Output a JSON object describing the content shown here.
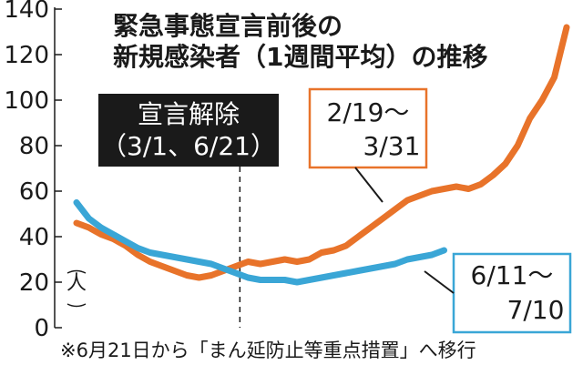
{
  "chart_data": {
    "type": "line",
    "title": [
      "緊急事態宣言前後の",
      "新規感染者（1週間平均）の推移"
    ],
    "ylabel": "人",
    "ylim": [
      0,
      140
    ],
    "yticks": [
      0,
      20,
      40,
      60,
      80,
      100,
      120,
      140
    ],
    "grid": false,
    "marker": {
      "label": [
        "宣言解除",
        "（3/1、6/21）"
      ],
      "at_day": 40
    },
    "series": [
      {
        "name": "2/19〜3/31",
        "color": "#e8732a",
        "label": [
          "2/19〜",
          "3/31"
        ],
        "x": [
          0,
          3,
          6,
          9,
          12,
          15,
          18,
          21,
          24,
          27,
          30,
          33,
          36,
          39,
          42,
          45,
          48,
          51,
          54,
          57,
          60,
          63,
          66,
          69,
          72,
          75,
          78,
          81,
          84,
          87,
          90,
          93,
          96,
          99,
          102,
          105,
          108,
          111,
          114,
          117,
          120
        ],
        "values": [
          46,
          44,
          41,
          39,
          36,
          32,
          29,
          27,
          25,
          23,
          22,
          23,
          25,
          27,
          29,
          28,
          29,
          30,
          29,
          30,
          33,
          34,
          36,
          40,
          44,
          48,
          52,
          56,
          58,
          60,
          61,
          62,
          61,
          63,
          67,
          72,
          80,
          92,
          100,
          110,
          132
        ]
      },
      {
        "name": "6/11〜7/10",
        "color": "#3aa6d6",
        "label": [
          "6/11〜",
          "7/10"
        ],
        "x": [
          0,
          3,
          6,
          9,
          12,
          15,
          18,
          21,
          24,
          27,
          30,
          33,
          36,
          39,
          42,
          45,
          48,
          51,
          54,
          57,
          60,
          63,
          66,
          69,
          72,
          75,
          78,
          81,
          84,
          87,
          90
        ],
        "values": [
          55,
          48,
          44,
          41,
          38,
          35,
          33,
          32,
          31,
          30,
          29,
          28,
          26,
          24,
          22,
          21,
          21,
          21,
          20,
          21,
          22,
          23,
          24,
          25,
          26,
          27,
          28,
          30,
          31,
          32,
          34
        ]
      }
    ],
    "note": "※6月21日から「まん延防止等重点措置」へ移行"
  }
}
